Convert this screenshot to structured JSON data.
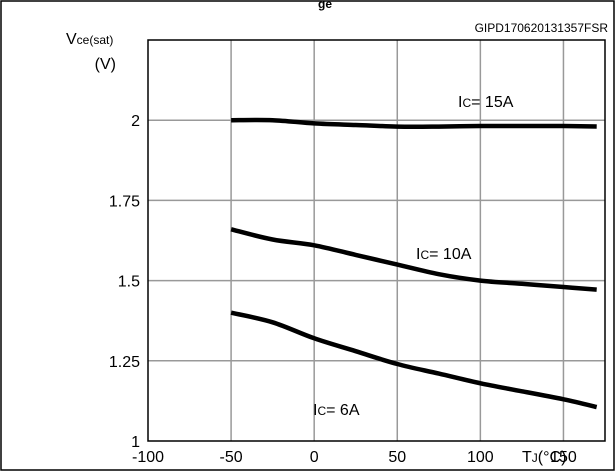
{
  "chart_data": {
    "type": "line",
    "title": "",
    "top_title_fragment": "ge",
    "code": "GIPD170620131357FSR",
    "ylabel": {
      "main": "V",
      "sub": "ce(sat)",
      "unit": "(V)"
    },
    "xlabel": {
      "main": "T",
      "sub": "J",
      "unit": "(°C)"
    },
    "xlim": [
      -100,
      175
    ],
    "ylim": [
      1,
      2.25
    ],
    "xticks": [
      "-100",
      "-50",
      "0",
      "50",
      "100",
      "150"
    ],
    "xtick_values": [
      -100,
      -50,
      0,
      50,
      100,
      150
    ],
    "yticks": [
      "1",
      "1.25",
      "1.5",
      "1.75",
      "2"
    ],
    "ytick_values": [
      1,
      1.25,
      1.5,
      1.75,
      2
    ],
    "grid": true,
    "series": [
      {
        "name": "IC= 15A",
        "label_prefix": "I",
        "label_sub": "C",
        "label_value": "= 15A",
        "x": [
          -50,
          -25,
          0,
          25,
          50,
          75,
          100,
          125,
          150,
          175
        ],
        "y": [
          2.0,
          2.0,
          1.99,
          1.985,
          1.98,
          1.98,
          1.982,
          1.982,
          1.982,
          1.98
        ]
      },
      {
        "name": "IC= 10A",
        "label_prefix": "I",
        "label_sub": "C",
        "label_value": "= 10A",
        "x": [
          -50,
          -25,
          0,
          25,
          50,
          75,
          100,
          125,
          150,
          175
        ],
        "y": [
          1.66,
          1.628,
          1.61,
          1.58,
          1.55,
          1.52,
          1.5,
          1.49,
          1.48,
          1.47
        ]
      },
      {
        "name": "IC= 6A",
        "label_prefix": "I",
        "label_sub": "C",
        "label_value": "= 6A",
        "x": [
          -50,
          -25,
          0,
          25,
          50,
          75,
          100,
          125,
          150,
          175
        ],
        "y": [
          1.4,
          1.37,
          1.32,
          1.28,
          1.24,
          1.21,
          1.18,
          1.155,
          1.13,
          1.1
        ]
      }
    ]
  }
}
